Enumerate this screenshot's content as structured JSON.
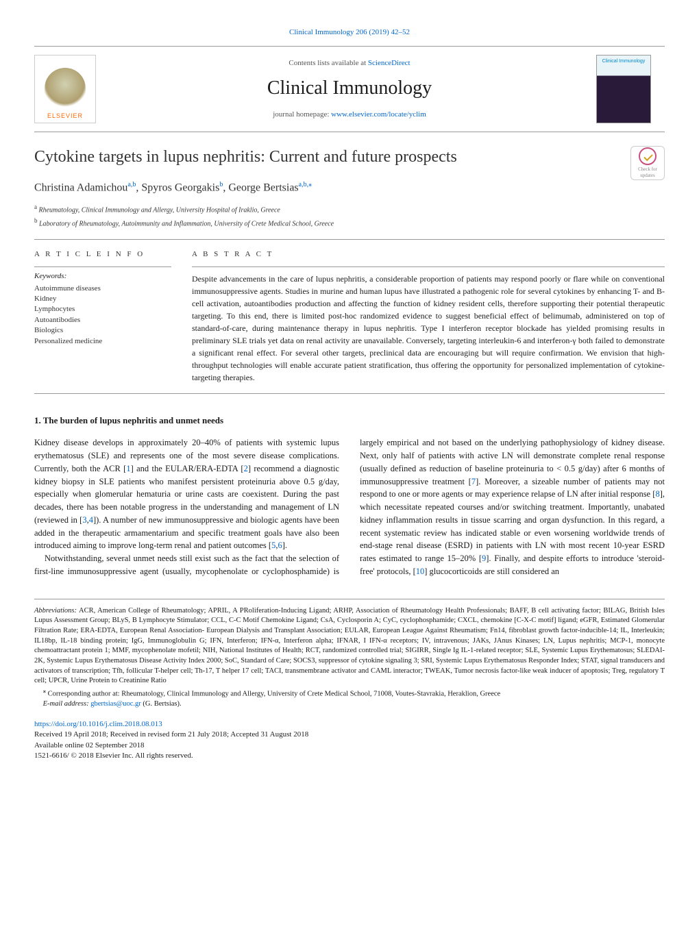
{
  "header": {
    "top_link": "Clinical Immunology 206 (2019) 42–52",
    "contents_line_prefix": "Contents lists available at ",
    "contents_link": "ScienceDirect",
    "journal_name": "Clinical Immunology",
    "homepage_prefix": "journal homepage: ",
    "homepage_url": "www.elsevier.com/locate/yclim",
    "elsevier_label": "ELSEVIER",
    "cover_label": "Clinical Immunology"
  },
  "badge": {
    "line1": "Check for",
    "line2": "updates"
  },
  "article": {
    "title": "Cytokine targets in lupus nephritis: Current and future prospects",
    "authors_html": "Christina Adamichou",
    "author1": "Christina Adamichou",
    "author1_sup": "a,b",
    "author2": "Spyros Georgakis",
    "author2_sup": "b",
    "author3": "George Bertsias",
    "author3_sup": "a,b,",
    "corr_mark": "⁎",
    "affil_a_sup": "a",
    "affil_a": "Rheumatology, Clinical Immunology and Allergy, University Hospital of Iraklio, Greece",
    "affil_b_sup": "b",
    "affil_b": "Laboratory of Rheumatology, Autoimmunity and Inflammation, University of Crete Medical School, Greece"
  },
  "info": {
    "heading": "A R T I C L E  I N F O",
    "keywords_label": "Keywords:",
    "keywords": [
      "Autoimmune diseases",
      "Kidney",
      "Lymphocytes",
      "Autoantibodies",
      "Biologics",
      "Personalized medicine"
    ]
  },
  "abstract": {
    "heading": "A B S T R A C T",
    "text": "Despite advancements in the care of lupus nephritis, a considerable proportion of patients may respond poorly or flare while on conventional immunosuppressive agents. Studies in murine and human lupus have illustrated a pathogenic role for several cytokines by enhancing T- and B-cell activation, autoantibodies production and affecting the function of kidney resident cells, therefore supporting their potential therapeutic targeting. To this end, there is limited post-hoc randomized evidence to suggest beneficial effect of belimumab, administered on top of standard-of-care, during maintenance therapy in lupus nephritis. Type I interferon receptor blockade has yielded promising results in preliminary SLE trials yet data on renal activity are unavailable. Conversely, targeting interleukin-6 and interferon-γ both failed to demonstrate a significant renal effect. For several other targets, preclinical data are encouraging but will require confirmation. We envision that high-throughput technologies will enable accurate patient stratification, thus offering the opportunity for personalized implementation of cytokine-targeting therapies."
  },
  "body": {
    "heading": "1. The burden of lupus nephritis and unmet needs",
    "col1_p1a": "Kidney disease develops in approximately 20–40% of patients with systemic lupus erythematosus (SLE) and represents one of the most severe disease complications. Currently, both the ACR [",
    "c1": "1",
    "col1_p1b": "] and the EULAR/ERA-EDTA [",
    "c2": "2",
    "col1_p1c": "] recommend a diagnostic kidney biopsy in SLE patients who manifest persistent proteinuria above 0.5 g/day, especially when glomerular hematuria or urine casts are coexistent. During the past decades, there has been notable progress in the understanding and management of LN (reviewed in [",
    "c3": "3",
    "comma1": ",",
    "c4": "4",
    "col1_p1d": "]). A number of new immunosuppressive and biologic agents have been added in the therapeutic armamentarium and specific treatment goals have also been introduced aiming to improve long-term renal and patient outcomes [",
    "c5": "5",
    "comma2": ",",
    "c6": "6",
    "col1_p1e": "].",
    "col1_p2": "Notwithstanding, several unmet needs still exist such as the fact that",
    "col2_p1a": "the selection of first-line immunosuppressive agent (usually, mycophenolate or cyclophosphamide) is largely empirical and not based on the underlying pathophysiology of kidney disease. Next, only half of patients with active LN will demonstrate complete renal response (usually defined as reduction of baseline proteinuria to < 0.5 g/day) after 6 months of immunosuppressive treatment [",
    "c7": "7",
    "col2_p1b": "]. Moreover, a sizeable number of patients may not respond to one or more agents or may experience relapse of LN after initial response [",
    "c8": "8",
    "col2_p1c": "], which necessitate repeated courses and/or switching treatment. Importantly, unabated kidney inflammation results in tissue scarring and organ dysfunction. In this regard, a recent systematic review has indicated stable or even worsening worldwide trends of end-stage renal disease (ESRD) in patients with LN with most recent 10-year ESRD rates estimated to range 15–20% [",
    "c9": "9",
    "col2_p1d": "]. Finally, and despite efforts to introduce 'steroid-free' protocols, [",
    "c10": "10",
    "col2_p1e": "] glucocorticoids are still considered an"
  },
  "footnotes": {
    "abbrev_label": "Abbreviations:",
    "abbrev_text": " ACR, American College of Rheumatology; APRIL, A PRoliferation-Inducing Ligand; ARHP, Association of Rheumatology Health Professionals; BAFF, B cell activating factor; BILAG, British Isles Lupus Assessment Group; BLyS, B Lymphocyte Stimulator; CCL, C-C Motif Chemokine Ligand; CsA, Cyclosporin A; CyC, cyclophosphamide; CXCL, chemokine [C-X-C motif] ligand; eGFR, Estimated Glomerular Filtration Rate; ERA-EDTA, European Renal Association- European Dialysis and Transplant Association; EULAR, European League Against Rheumatism; Fn14, fibroblast growth factor-inducible-14; IL, Interleukin; IL18bp, IL-18 binding protein; IgG, Immunoglobulin G; IFN, Interferon; IFN-α, Interferon alpha; IFNAR, I IFN-α receptors; IV, intravenous; JAKs, JAnus Kinases; LN, Lupus nephritis; MCP-1, monocyte chemoattractant protein 1; MMF, mycophenolate mofetil; NIH, National Institutes of Health; RCT, randomized controlled trial; SIGIRR, Single Ig IL-1-related receptor; SLE, Systemic Lupus Erythematosus; SLEDAI-2K, Systemic Lupus Erythematosus Disease Activity Index 2000; SoC, Standard of Care; SOCS3, suppressor of cytokine signaling 3; SRI, Systemic Lupus Erythematosus Responder Index; STAT, signal transducers and activators of transcription; Tfh, follicular T-helper cell; Th-17, T helper 17 cell; TACI, transmembrane activator and CAML interactor; TWEAK, Tumor necrosis factor-like weak inducer of apoptosis; Treg, regulatory T cell; UPCR, Urine Protein to Creatinine Ratio",
    "corr_mark": "⁎",
    "corr_text": " Corresponding author at: Rheumatology, Clinical Immunology and Allergy, University of Crete Medical School, 71008, Voutes-Stavrakia, Heraklion, Greece",
    "email_label": "E-mail address: ",
    "email": "gbertsias@uoc.gr",
    "email_suffix": " (G. Bertsias)."
  },
  "pub": {
    "doi": "https://doi.org/10.1016/j.clim.2018.08.013",
    "received": "Received 19 April 2018; Received in revised form 21 July 2018; Accepted 31 August 2018",
    "available": "Available online 02 September 2018",
    "copyright": "1521-6616/ © 2018 Elsevier Inc. All rights reserved."
  },
  "style": {
    "link_color": "#0066cc",
    "text_color": "#1a1a1a",
    "border_color": "#999999",
    "elsevier_orange": "#ff6600",
    "body_font_size": 12.5,
    "title_font_size": 24,
    "journal_font_size": 28,
    "badge_ring": "#c94f7c",
    "badge_check": "#d4a017"
  }
}
